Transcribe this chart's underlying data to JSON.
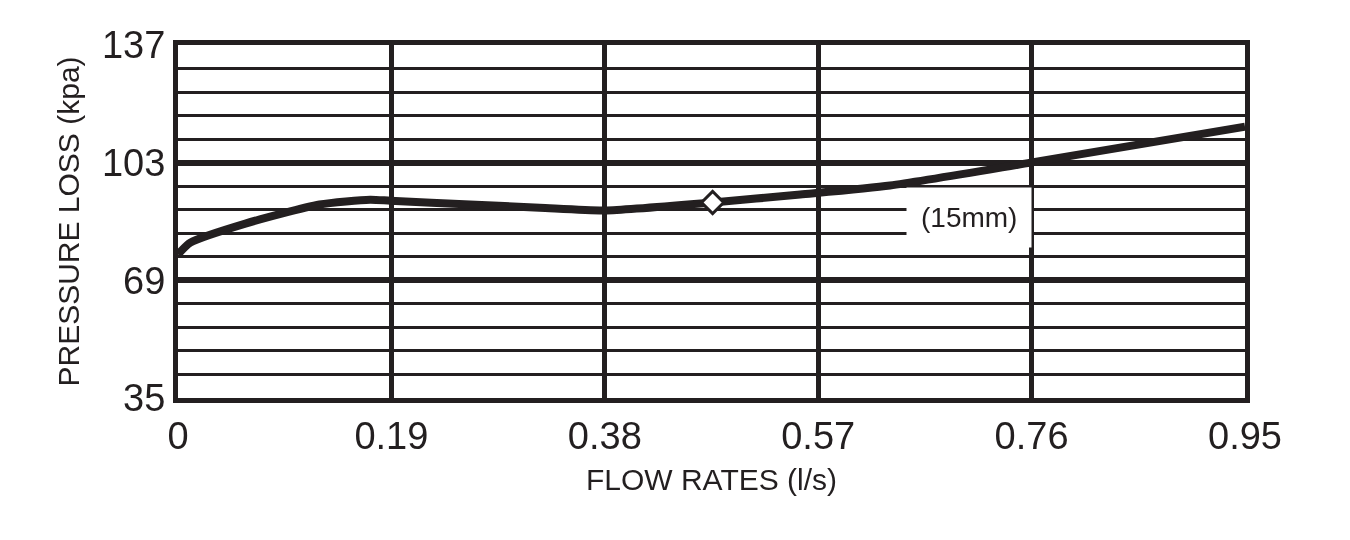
{
  "chart_data": {
    "type": "line",
    "xlabel": "FLOW RATES (l/s)",
    "ylabel": "PRESSURE LOSS (kpa)",
    "x": [
      0,
      0.011,
      0.06,
      0.126,
      0.171,
      0.189,
      0.26,
      0.322,
      0.38,
      0.476,
      0.554,
      0.634,
      0.759,
      0.95
    ],
    "series": [
      {
        "color": "#231f20",
        "marker": "none",
        "values": [
          76.5,
          79.9,
          85.4,
          90.9,
          92.3,
          92,
          90.9,
          90,
          89.2,
          91.5,
          93.8,
          96.4,
          103,
          113.4
        ]
      },
      {
        "type": "scatter",
        "color": "#231f20",
        "marker": "diamond",
        "x": [
          0.476
        ],
        "values": [
          91.5
        ]
      }
    ],
    "annotations": [
      "(15mm)"
    ],
    "xlim": [
      0,
      0.95
    ],
    "xticks": [
      0,
      0.19,
      0.38,
      0.57,
      0.76,
      0.95
    ],
    "ylim": [
      35,
      137
    ],
    "yticks": [
      35,
      69,
      103,
      137
    ],
    "grid": true,
    "legend": false
  }
}
